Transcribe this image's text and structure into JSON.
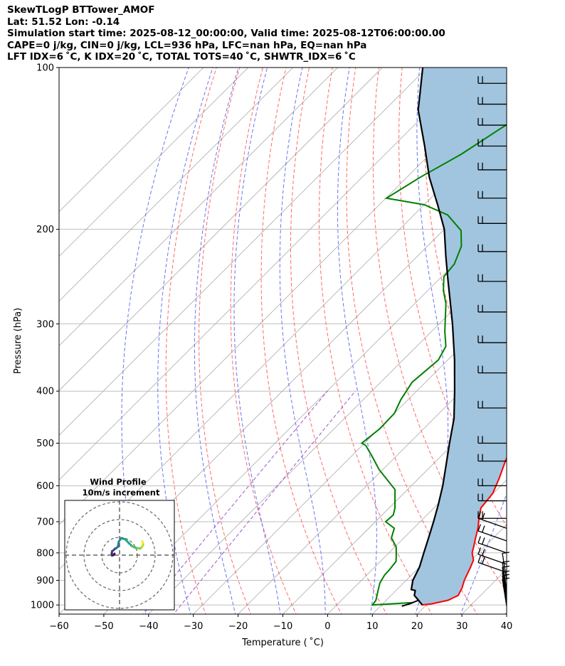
{
  "header": {
    "line1": "SkewTLogP BTTower_AMOF",
    "line2": "Lat: 51.52   Lon: -0.14",
    "line3": "Simulation start time: 2025-08-12_00:00:00, Valid time: 2025-08-12T06:00:00.00",
    "line4": "CAPE=0 j/kg, CIN=0 j/kg, LCL=936 hPa, LFC=nan hPa, EQ=nan hPa",
    "line5": "LFT IDX=6 ˚C, K IDX=20 ˚C, TOTAL TOTS=40 ˚C, SHWTR_IDX=6 ˚C"
  },
  "chart_data": [
    {
      "type": "line",
      "subtype": "skew-t log-p",
      "xlabel": "Temperature ( ˚C)",
      "ylabel": "Pressure (hPa)",
      "xlim": [
        -60,
        40
      ],
      "ylim": [
        1040,
        100
      ],
      "y_scale": "log",
      "x_ticks": [
        "−60",
        "−50",
        "−40",
        "−30",
        "−20",
        "−10",
        "0",
        "10",
        "20",
        "30",
        "40"
      ],
      "y_ticks": [
        "100",
        "200",
        "300",
        "400",
        "500",
        "600",
        "700",
        "800",
        "900",
        "1000"
      ],
      "grid": true,
      "colors": {
        "temperature": "#ff0000",
        "dewpoint": "#008000",
        "parcel": "#000000",
        "shading": "#a1c5df",
        "dry_adiabats": "#ff5050",
        "moist_adiabats": "#4f5cf0",
        "mixing_ratio": "#9a40c8",
        "isotherms": "#aaaaaa"
      },
      "series": [
        {
          "role": "temperature",
          "points": [
            [
              19.0,
              1000
            ],
            [
              21,
              995
            ],
            [
              23.8,
              980
            ],
            [
              25,
              960
            ],
            [
              24.2,
              930
            ],
            [
              23,
              900
            ],
            [
              21.4,
              850
            ],
            [
              20.5,
              825
            ],
            [
              18.6,
              800
            ],
            [
              17.6,
              780
            ],
            [
              16,
              750
            ],
            [
              14.4,
              720
            ],
            [
              12.4,
              690
            ],
            [
              10.5,
              660
            ],
            [
              9.9,
              620
            ],
            [
              7.9,
              580
            ],
            [
              5.5,
              540
            ],
            [
              3.2,
              500
            ],
            [
              0.7,
              465
            ],
            [
              -3.2,
              430
            ],
            [
              -5.6,
              400
            ],
            [
              -9.2,
              360
            ],
            [
              -12.3,
              330
            ],
            [
              -16,
              310
            ],
            [
              -19.7,
              290
            ],
            [
              -22.5,
              275
            ],
            [
              -25,
              262
            ],
            [
              -28,
              250
            ],
            [
              -29,
              240
            ],
            [
              -31.5,
              225
            ],
            [
              -34,
              210
            ],
            [
              -36,
              200
            ],
            [
              -39,
              185
            ],
            [
              -42,
              170
            ],
            [
              -45,
              158
            ],
            [
              -47,
              150
            ],
            [
              -50,
              142
            ],
            [
              -52,
              133
            ],
            [
              -54,
              125
            ],
            [
              -56,
              118
            ],
            [
              -58,
              112
            ],
            [
              -60.5,
              106
            ],
            [
              -62,
              100
            ]
          ]
        },
        {
          "role": "dewpoint",
          "points": [
            [
              16.5,
              990
            ],
            [
              8,
              1000
            ],
            [
              7.7,
              980
            ],
            [
              6,
              940
            ],
            [
              4.7,
              910
            ],
            [
              4,
              880
            ],
            [
              3.9,
              860
            ],
            [
              3.5,
              830
            ],
            [
              2.3,
              810
            ],
            [
              0.3,
              780
            ],
            [
              -2.8,
              750
            ],
            [
              -4.3,
              720
            ],
            [
              -7.7,
              700
            ],
            [
              -7.5,
              680
            ],
            [
              -8.7,
              660
            ],
            [
              -12.8,
              610
            ],
            [
              -20.8,
              560
            ],
            [
              -25.2,
              530
            ],
            [
              -29.2,
              505
            ],
            [
              -30.6,
              500
            ],
            [
              -29.8,
              470
            ],
            [
              -30,
              440
            ],
            [
              -31.6,
              415
            ],
            [
              -33,
              385
            ],
            [
              -32.1,
              350
            ],
            [
              -33.5,
              330
            ],
            [
              -37,
              310
            ],
            [
              -39.5,
              295
            ],
            [
              -43,
              275
            ],
            [
              -46.5,
              260
            ],
            [
              -49.5,
              245
            ],
            [
              -50,
              232
            ],
            [
              -52.4,
              215
            ],
            [
              -56,
              201
            ],
            [
              -62.5,
              188
            ],
            [
              -70,
              180
            ],
            [
              -79.9,
              175
            ],
            [
              -77,
              160
            ],
            [
              -73,
              145
            ],
            [
              -70,
              130
            ],
            [
              -67,
              118
            ],
            [
              -62.5,
              100
            ]
          ]
        },
        {
          "role": "parcel",
          "points": [
            [
              19.1,
              1000
            ],
            [
              17.2,
              980
            ],
            [
              15.2,
              960
            ],
            [
              14.3,
              940
            ],
            [
              13.2,
              936
            ],
            [
              11.5,
              900
            ],
            [
              10,
              850
            ],
            [
              7.8,
              800
            ],
            [
              5.5,
              750
            ],
            [
              3,
              700
            ],
            [
              0.2,
              650
            ],
            [
              -3,
              600
            ],
            [
              -6.8,
              550
            ],
            [
              -11,
              500
            ],
            [
              -15.5,
              450
            ],
            [
              -21.5,
              400
            ],
            [
              -28.5,
              350
            ],
            [
              -37,
              300
            ],
            [
              -42,
              275
            ],
            [
              -47.5,
              250
            ],
            [
              -53.5,
              225
            ],
            [
              -60,
              200
            ],
            [
              -67,
              180
            ],
            [
              -75,
              160
            ],
            [
              -83,
              140
            ],
            [
              -92.5,
              120
            ],
            [
              -101,
              100
            ]
          ]
        },
        {
          "role": "parcel-surface-segment",
          "points": [
            [
              14.8,
              1005
            ],
            [
              16,
              995
            ],
            [
              17.2,
              980
            ]
          ]
        }
      ],
      "wind_barbs": {
        "levels": [
          1005,
          990,
          975,
          955,
          935,
          900,
          870,
          840,
          800,
          760,
          720,
          690,
          640,
          600,
          540,
          500,
          430,
          370,
          325,
          285,
          250,
          220,
          195,
          175,
          155,
          140,
          128,
          117,
          107
        ]
      }
    },
    {
      "type": "line",
      "subtype": "hodograph",
      "title": "Wind Profile",
      "subtitle": "10m/s increment",
      "ring_interval": 10,
      "rings": 3,
      "colormap": "viridis"
    }
  ]
}
